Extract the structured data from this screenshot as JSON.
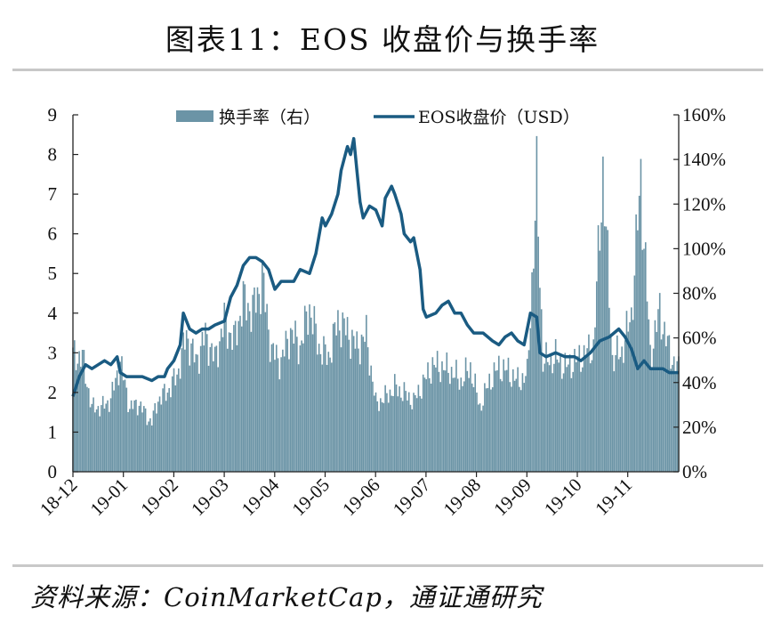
{
  "title": "图表11：EOS 收盘价与换手率",
  "source": "资料来源：CoinMarketCap，通证通研究",
  "colors": {
    "bars": "#6b94a6",
    "line": "#1a5b82",
    "axis": "#222222"
  },
  "chart_data": {
    "type": "bar+line",
    "categories": [
      "18-12",
      "19-01",
      "19-02",
      "19-03",
      "19-04",
      "19-05",
      "19-06",
      "19-07",
      "19-08",
      "19-09",
      "19-10",
      "19-11"
    ],
    "left_axis": {
      "ylim": [
        0,
        9
      ],
      "ticks": [
        "0",
        "1",
        "2",
        "3",
        "4",
        "5",
        "6",
        "7",
        "8",
        "9"
      ]
    },
    "right_axis": {
      "ylim": [
        0,
        160
      ],
      "ticks": [
        "0%",
        "20%",
        "40%",
        "60%",
        "80%",
        "100%",
        "120%",
        "140%",
        "160%"
      ]
    },
    "grid": false,
    "legend": {
      "position": "top",
      "entries": [
        "换手率（右）",
        "EOS收盘价（USD）"
      ]
    },
    "series": [
      {
        "name": "换手率（右）",
        "type": "bar",
        "axis": "right",
        "points": [
          [
            0,
            58
          ],
          [
            6,
            57
          ],
          [
            12,
            32
          ],
          [
            18,
            32
          ],
          [
            24,
            36
          ],
          [
            30,
            55
          ],
          [
            36,
            32
          ],
          [
            42,
            34
          ],
          [
            48,
            26
          ],
          [
            50,
            25
          ],
          [
            54,
            36
          ],
          [
            60,
            40
          ],
          [
            66,
            48
          ],
          [
            72,
            68
          ],
          [
            78,
            55
          ],
          [
            84,
            68
          ],
          [
            90,
            56
          ],
          [
            96,
            75
          ],
          [
            102,
            65
          ],
          [
            108,
            85
          ],
          [
            114,
            80
          ],
          [
            120,
            96
          ],
          [
            126,
            60
          ],
          [
            132,
            55
          ],
          [
            138,
            70
          ],
          [
            144,
            62
          ],
          [
            150,
            82
          ],
          [
            156,
            62
          ],
          [
            162,
            57
          ],
          [
            168,
            75
          ],
          [
            174,
            70
          ],
          [
            180,
            62
          ],
          [
            186,
            68
          ],
          [
            192,
            34
          ],
          [
            198,
            37
          ],
          [
            204,
            42
          ],
          [
            210,
            39
          ],
          [
            216,
            35
          ],
          [
            222,
            44
          ],
          [
            228,
            53
          ],
          [
            234,
            52
          ],
          [
            240,
            50
          ],
          [
            246,
            45
          ],
          [
            252,
            52
          ],
          [
            258,
            32
          ],
          [
            264,
            45
          ],
          [
            270,
            52
          ],
          [
            276,
            50
          ],
          [
            282,
            45
          ],
          [
            288,
            48
          ],
          [
            294,
            142
          ],
          [
            298,
            56
          ],
          [
            300,
            55
          ],
          [
            306,
            57
          ],
          [
            312,
            52
          ],
          [
            318,
            55
          ],
          [
            324,
            58
          ],
          [
            330,
            62
          ],
          [
            336,
            150
          ],
          [
            342,
            56
          ],
          [
            348,
            60
          ],
          [
            354,
            78
          ],
          [
            360,
            146
          ],
          [
            366,
            58
          ],
          [
            372,
            80
          ],
          [
            378,
            60
          ],
          [
            384,
            50
          ]
        ]
      },
      {
        "name": "EOS收盘价（USD）",
        "type": "line",
        "axis": "left",
        "points": [
          [
            0,
            1.9
          ],
          [
            4,
            2.4
          ],
          [
            8,
            2.7
          ],
          [
            12,
            2.6
          ],
          [
            16,
            2.7
          ],
          [
            20,
            2.8
          ],
          [
            24,
            2.7
          ],
          [
            28,
            2.9
          ],
          [
            30,
            2.5
          ],
          [
            34,
            2.4
          ],
          [
            40,
            2.4
          ],
          [
            44,
            2.4
          ],
          [
            50,
            2.3
          ],
          [
            54,
            2.4
          ],
          [
            58,
            2.4
          ],
          [
            60,
            2.6
          ],
          [
            64,
            2.8
          ],
          [
            68,
            3.2
          ],
          [
            70,
            4.0
          ],
          [
            74,
            3.6
          ],
          [
            78,
            3.5
          ],
          [
            82,
            3.6
          ],
          [
            86,
            3.6
          ],
          [
            90,
            3.7
          ],
          [
            96,
            3.8
          ],
          [
            100,
            4.4
          ],
          [
            104,
            4.7
          ],
          [
            108,
            5.2
          ],
          [
            112,
            5.4
          ],
          [
            116,
            5.4
          ],
          [
            120,
            5.3
          ],
          [
            124,
            5.1
          ],
          [
            128,
            4.6
          ],
          [
            132,
            4.8
          ],
          [
            136,
            4.8
          ],
          [
            140,
            4.8
          ],
          [
            144,
            5.1
          ],
          [
            150,
            5.0
          ],
          [
            154,
            5.5
          ],
          [
            158,
            6.4
          ],
          [
            160,
            6.2
          ],
          [
            164,
            6.5
          ],
          [
            168,
            7.0
          ],
          [
            170,
            7.6
          ],
          [
            174,
            8.2
          ],
          [
            176,
            8.0
          ],
          [
            178,
            8.4
          ],
          [
            180,
            7.6
          ],
          [
            182,
            6.8
          ],
          [
            184,
            6.4
          ],
          [
            188,
            6.7
          ],
          [
            192,
            6.6
          ],
          [
            196,
            6.2
          ],
          [
            198,
            6.9
          ],
          [
            202,
            7.2
          ],
          [
            204,
            7.0
          ],
          [
            208,
            6.5
          ],
          [
            210,
            6.0
          ],
          [
            214,
            5.8
          ],
          [
            216,
            5.9
          ],
          [
            220,
            5.1
          ],
          [
            222,
            4.1
          ],
          [
            224,
            3.9
          ],
          [
            230,
            4.0
          ],
          [
            234,
            4.2
          ],
          [
            238,
            4.3
          ],
          [
            242,
            4.0
          ],
          [
            246,
            4.0
          ],
          [
            250,
            3.7
          ],
          [
            254,
            3.5
          ],
          [
            260,
            3.5
          ],
          [
            266,
            3.3
          ],
          [
            270,
            3.2
          ],
          [
            274,
            3.4
          ],
          [
            278,
            3.5
          ],
          [
            282,
            3.3
          ],
          [
            286,
            3.2
          ],
          [
            290,
            4.0
          ],
          [
            294,
            3.9
          ],
          [
            296,
            3.0
          ],
          [
            300,
            2.9
          ],
          [
            306,
            3.0
          ],
          [
            312,
            2.9
          ],
          [
            318,
            2.9
          ],
          [
            322,
            2.8
          ],
          [
            328,
            3.0
          ],
          [
            334,
            3.3
          ],
          [
            340,
            3.4
          ],
          [
            346,
            3.6
          ],
          [
            350,
            3.4
          ],
          [
            354,
            3.1
          ],
          [
            358,
            2.6
          ],
          [
            362,
            2.8
          ],
          [
            366,
            2.6
          ],
          [
            370,
            2.6
          ],
          [
            374,
            2.6
          ],
          [
            378,
            2.5
          ],
          [
            384,
            2.5
          ]
        ]
      }
    ]
  }
}
